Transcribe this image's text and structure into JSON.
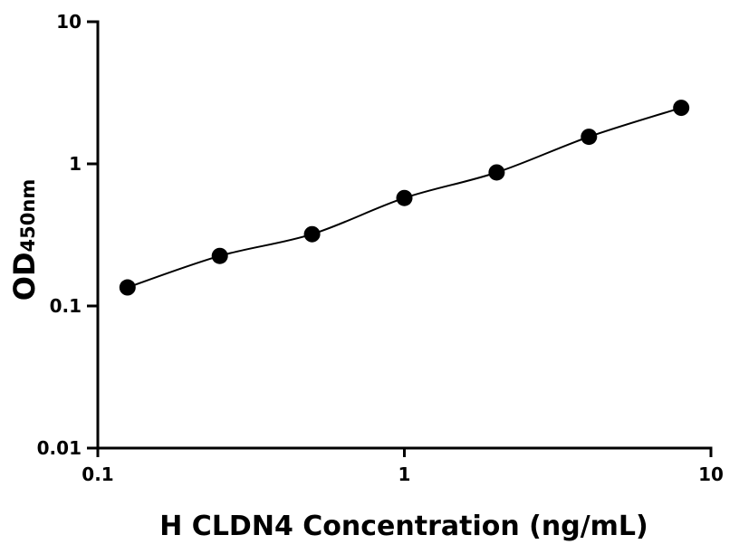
{
  "chart_data": {
    "type": "scatter",
    "x_scale": "log",
    "y_scale": "log",
    "xlim": [
      0.1,
      10
    ],
    "ylim": [
      0.01,
      10
    ],
    "x_ticks": [
      0.1,
      1,
      10
    ],
    "y_ticks": [
      0.01,
      0.1,
      1,
      10
    ],
    "x_tick_labels": [
      "0.1",
      "1",
      "10"
    ],
    "y_tick_labels": [
      "0.01",
      "0.1",
      "1",
      "10"
    ],
    "xlabel": "H CLDN4 Concentration (ng/mL)",
    "ylabel_main": "OD",
    "ylabel_sub": "450nm",
    "grid": false,
    "fitted_curve": true,
    "colors": {
      "points": "#000000",
      "curve": "#000000",
      "axes": "#000000"
    },
    "series": [
      {
        "x": [
          0.125,
          0.25,
          0.5,
          1,
          2,
          4,
          8
        ],
        "y": [
          0.135,
          0.225,
          0.32,
          0.575,
          0.87,
          1.55,
          2.48
        ]
      }
    ]
  }
}
